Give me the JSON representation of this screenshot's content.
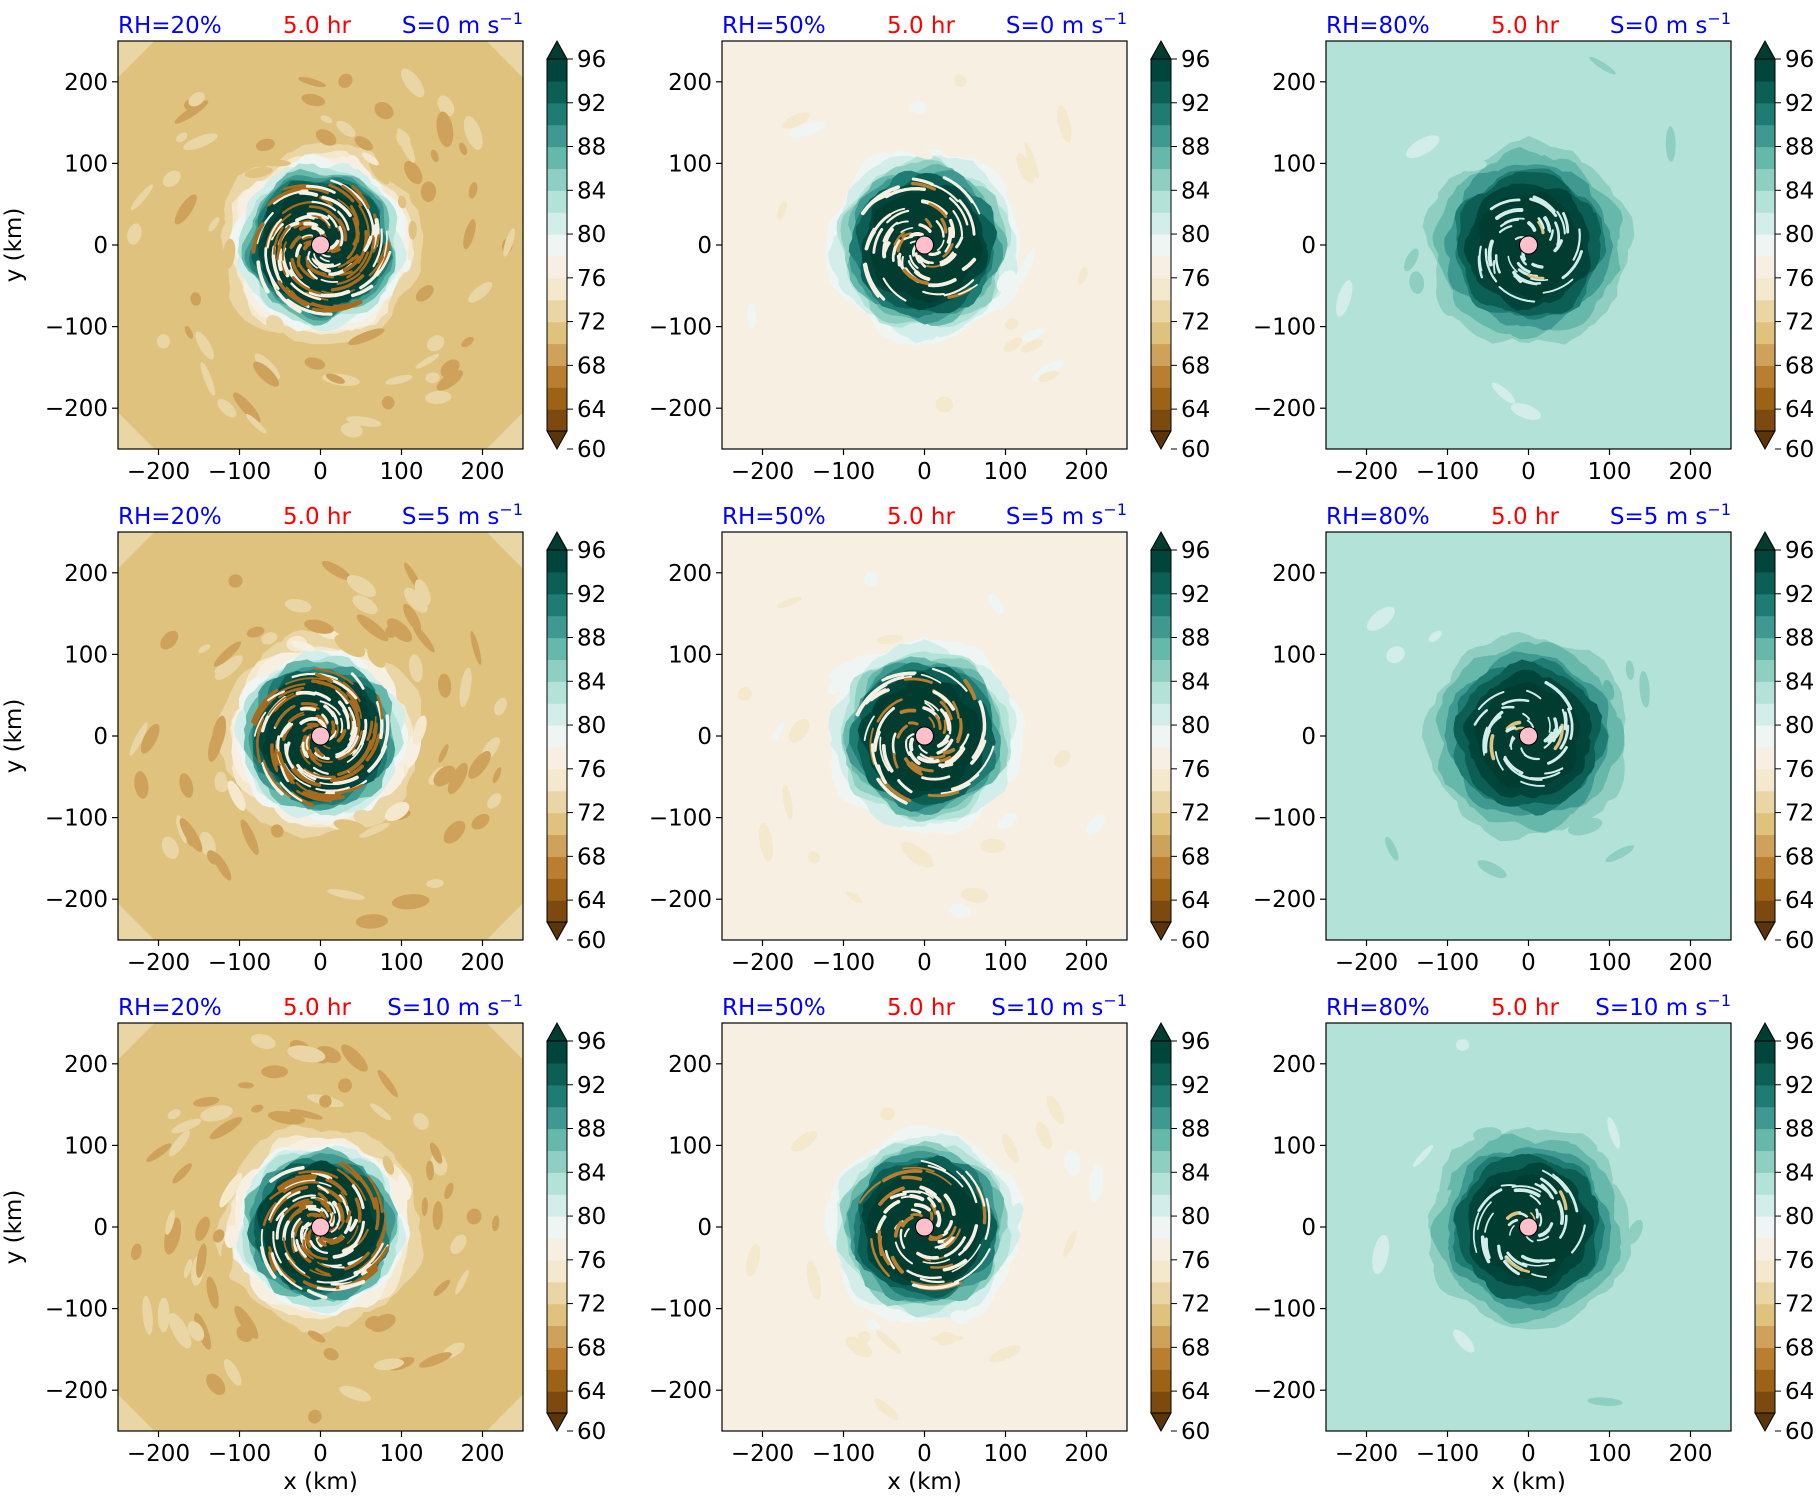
{
  "figure": {
    "time_label": "5.0 hr",
    "xlabel": "x (km)",
    "ylabel": "y (km)",
    "colors": {
      "rh_label": "#0000ff",
      "time_label": "#ff0000",
      "shear_label": "#0000ff",
      "center_marker": "#ffc0cb"
    }
  },
  "chart_data": [
    {
      "type": "heatmap",
      "rh_label": "RH=20%",
      "shear_prefix": "S=0 m s",
      "shear_sup": "−1",
      "rh": 20,
      "shear": 0
    },
    {
      "type": "heatmap",
      "rh_label": "RH=50%",
      "shear_prefix": "S=0 m s",
      "shear_sup": "−1",
      "rh": 50,
      "shear": 0
    },
    {
      "type": "heatmap",
      "rh_label": "RH=80%",
      "shear_prefix": "S=0 m s",
      "shear_sup": "−1",
      "rh": 80,
      "shear": 0
    },
    {
      "type": "heatmap",
      "rh_label": "RH=20%",
      "shear_prefix": "S=5 m s",
      "shear_sup": "−1",
      "rh": 20,
      "shear": 5
    },
    {
      "type": "heatmap",
      "rh_label": "RH=50%",
      "shear_prefix": "S=5 m s",
      "shear_sup": "−1",
      "rh": 50,
      "shear": 5
    },
    {
      "type": "heatmap",
      "rh_label": "RH=80%",
      "shear_prefix": "S=5 m s",
      "shear_sup": "−1",
      "rh": 80,
      "shear": 5
    },
    {
      "type": "heatmap",
      "rh_label": "RH=20%",
      "shear_prefix": "S=10 m s",
      "shear_sup": "−1",
      "rh": 20,
      "shear": 10
    },
    {
      "type": "heatmap",
      "rh_label": "RH=50%",
      "shear_prefix": "S=10 m s",
      "shear_sup": "−1",
      "rh": 50,
      "shear": 10
    },
    {
      "type": "heatmap",
      "rh_label": "RH=80%",
      "shear_prefix": "S=10 m s",
      "shear_sup": "−1",
      "rh": 80,
      "shear": 10
    }
  ],
  "axes": {
    "xlim": [
      -250,
      250
    ],
    "ylim": [
      -250,
      250
    ],
    "xticks": [
      -200,
      -100,
      0,
      100,
      200
    ],
    "yticks": [
      -200,
      -100,
      0,
      100,
      200
    ],
    "xtick_labels": [
      "−200",
      "−100",
      "0",
      "100",
      "200"
    ],
    "ytick_labels": [
      "−200",
      "−100",
      "0",
      "100",
      "200"
    ]
  },
  "colorbar": {
    "min": 60,
    "max": 98,
    "extend": "both",
    "ticks": [
      60,
      64,
      68,
      72,
      76,
      80,
      84,
      88,
      92,
      96
    ],
    "tick_labels": [
      "60",
      "64",
      "68",
      "72",
      "76",
      "80",
      "84",
      "88",
      "92",
      "96"
    ],
    "colors": [
      "#5a340a",
      "#7c4a0f",
      "#9c6215",
      "#b97e2f",
      "#cfa25c",
      "#dfc27d",
      "#ead6a4",
      "#f4e8cd",
      "#f6efe2",
      "#eef5f3",
      "#d3eeea",
      "#b3e2d9",
      "#8ecfc1",
      "#66b8aa",
      "#3f9990",
      "#1f7c72",
      "#0b5f55",
      "#00453c",
      "#003c30"
    ]
  }
}
